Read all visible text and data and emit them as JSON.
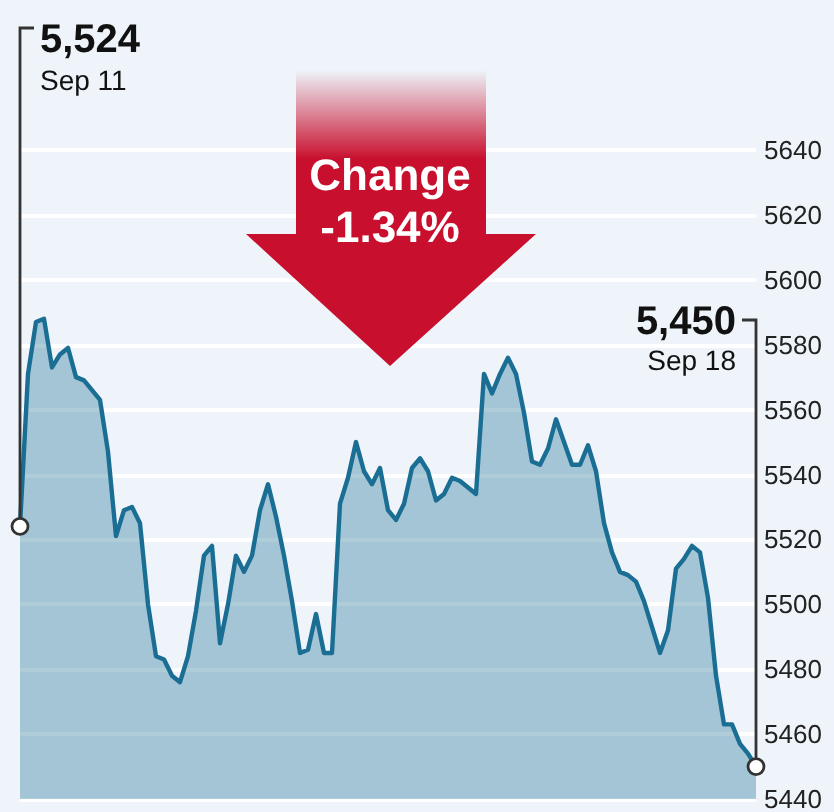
{
  "chart_data": {
    "type": "area",
    "categories": [
      null,
      null,
      null,
      null,
      null,
      null,
      null,
      null,
      null,
      null,
      null,
      null,
      null,
      null,
      null,
      null,
      null,
      null,
      null,
      null,
      null,
      null,
      null,
      null,
      null,
      null,
      null,
      null,
      null,
      null,
      null,
      null,
      null,
      null,
      null,
      null,
      null,
      null,
      null,
      null,
      null,
      null,
      null,
      null,
      null,
      null,
      null,
      null,
      null,
      null,
      null,
      null,
      null,
      null,
      null,
      null,
      null,
      null,
      null,
      null,
      null,
      null,
      null,
      null,
      null,
      null,
      null,
      null,
      null,
      null,
      null,
      null,
      null,
      null,
      null,
      null,
      null,
      null,
      null,
      null,
      null,
      null,
      null,
      null,
      null,
      null,
      null,
      null,
      null,
      null,
      null,
      null,
      null
    ],
    "series": [
      {
        "color": "#1a6e93",
        "values": [
          5524,
          5571,
          5587,
          5588,
          5573,
          5577,
          5579,
          5570,
          5569,
          5566,
          5563,
          5547,
          5521,
          5529,
          5530,
          5525,
          5500,
          5484,
          5483,
          5478,
          5476,
          5484,
          5498,
          5515,
          5518,
          5488,
          5500,
          5515,
          5510,
          5515,
          5529,
          5537,
          5527,
          5515,
          5501,
          5485,
          5486,
          5497,
          5485,
          5485,
          5531,
          5539,
          5550,
          5541,
          5537,
          5542,
          5529,
          5526,
          5531,
          5542,
          5545,
          5541,
          5532,
          5534,
          5539,
          5538,
          5536,
          5534,
          5571,
          5565,
          5571,
          5576,
          5571,
          5559,
          5544,
          5543,
          5548,
          5557,
          5550,
          5543,
          5543,
          5549,
          5541,
          5525,
          5516,
          5510,
          5509,
          5507,
          5501,
          5493,
          5485,
          5492,
          5511,
          5514,
          5518,
          5516,
          5502,
          5478,
          5463,
          5463,
          5457,
          5454,
          5450
        ]
      }
    ],
    "ylim": [
      5440,
      5640
    ],
    "yticks": [
      5440,
      5460,
      5480,
      5500,
      5520,
      5540,
      5560,
      5580,
      5600,
      5620,
      5640
    ],
    "grid": "y",
    "tick_labels": "y",
    "annotations": [
      "5,524",
      "Sep 11",
      "5,450",
      "Sep 18",
      "Change",
      "-1.34%"
    ]
  }
}
